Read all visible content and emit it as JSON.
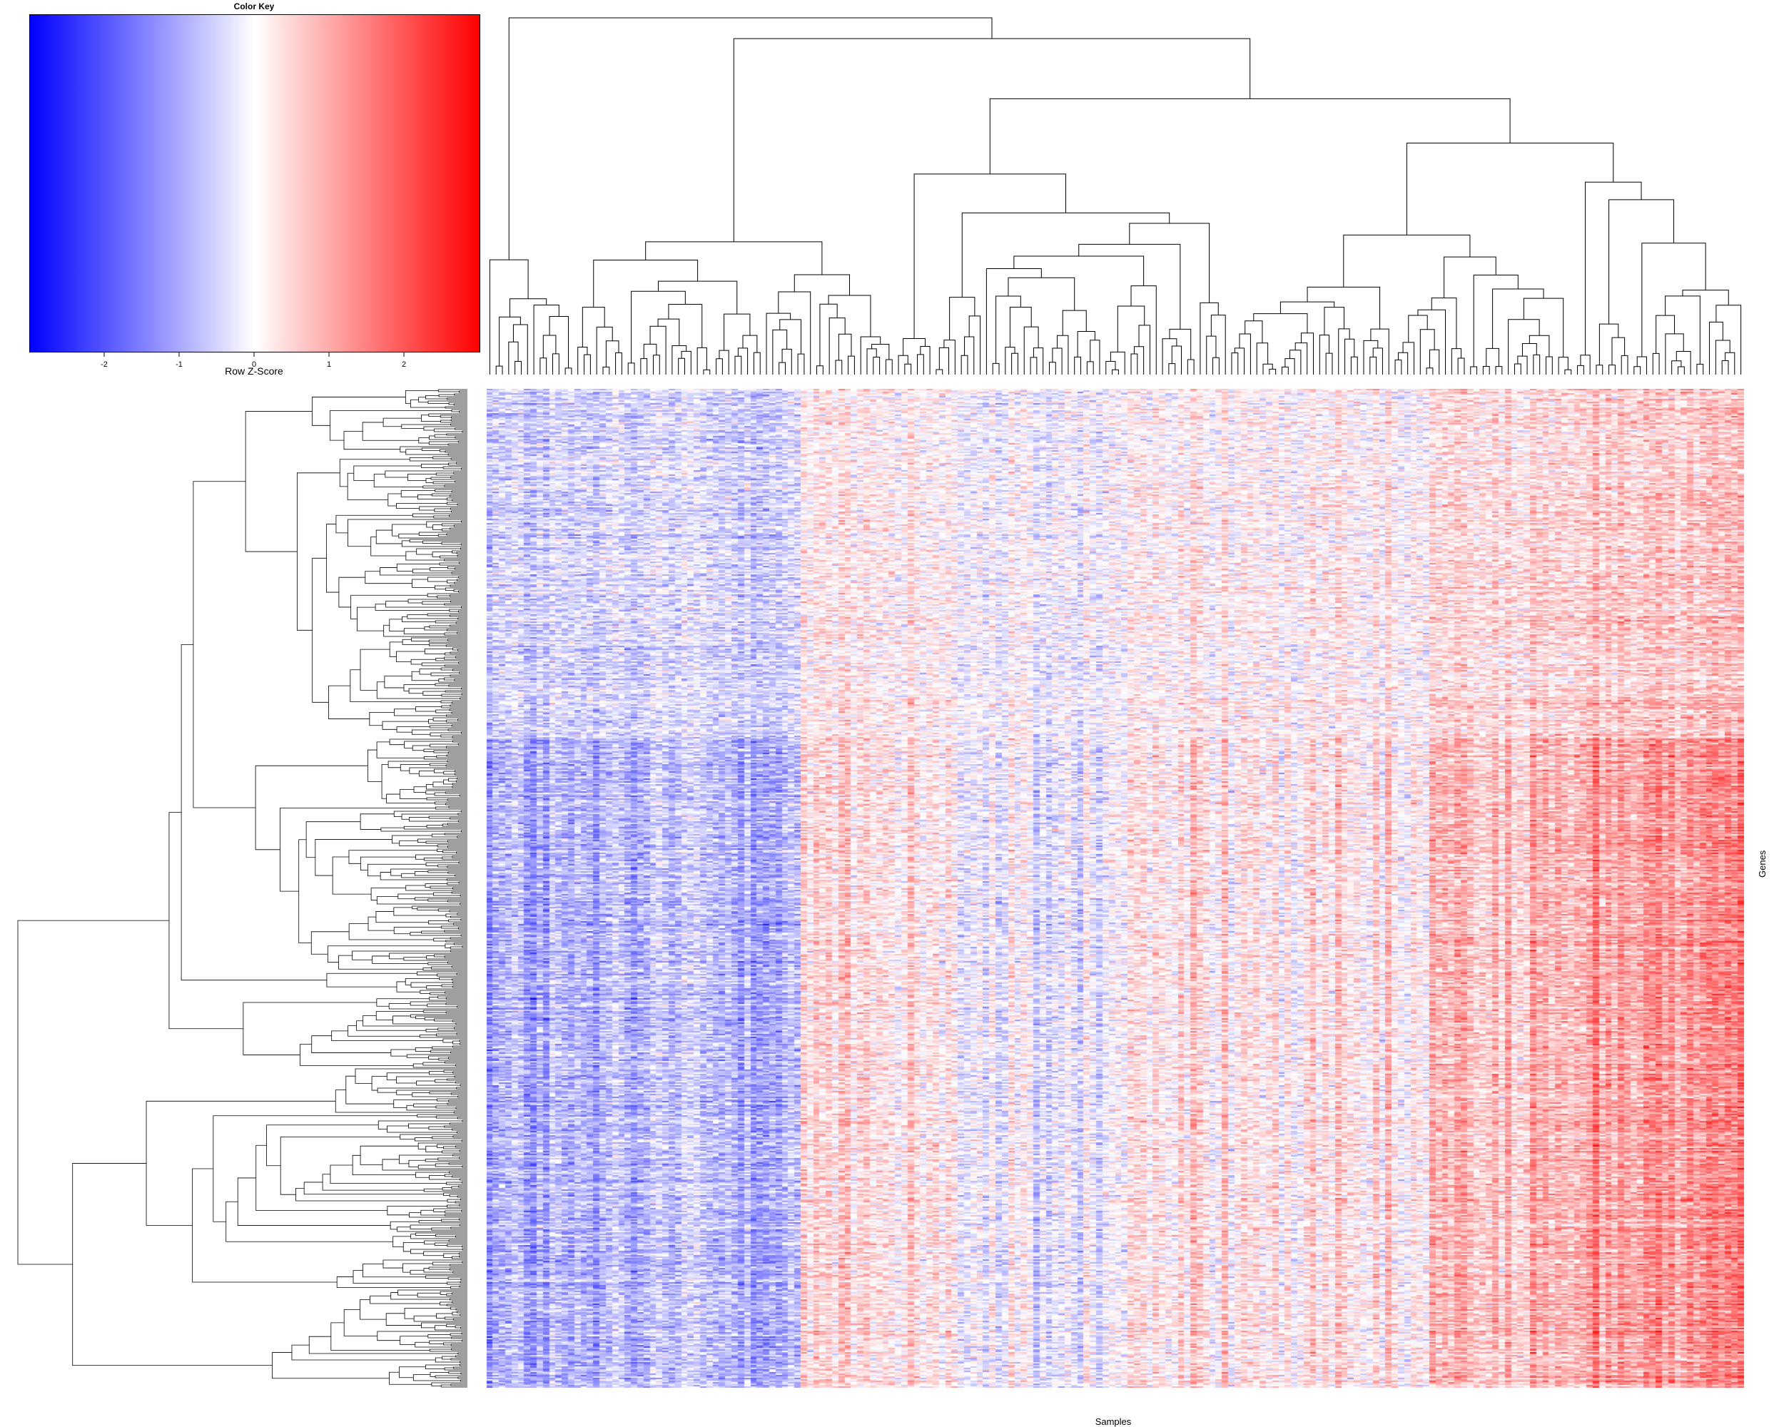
{
  "chart_data": {
    "type": "heatmap",
    "title": "",
    "xlabel": "Samples",
    "ylabel": "Genes",
    "color_key": {
      "title": "Color Key",
      "label": "Row Z-Score",
      "ticks": [
        -2,
        -1,
        0,
        1,
        2
      ],
      "tick_labels": [
        "-2",
        "-1",
        "0",
        "1",
        "2"
      ],
      "range": [
        -3,
        3
      ],
      "colors": {
        "low": "#0000ff",
        "mid": "#ffffff",
        "high": "#ff0000"
      }
    },
    "n_samples": 200,
    "n_genes": 700,
    "column_dendrogram": true,
    "row_dendrogram": true,
    "sample_block_trend": [
      {
        "block": 1,
        "mean_z": -0.8
      },
      {
        "block": 2,
        "mean_z": -0.6
      },
      {
        "block": 3,
        "mean_z": 0.3
      },
      {
        "block": 4,
        "mean_z": -0.2
      },
      {
        "block": 5,
        "mean_z": 0.2
      },
      {
        "block": 6,
        "mean_z": 0.1
      },
      {
        "block": 7,
        "mean_z": 0.6
      },
      {
        "block": 8,
        "mean_z": 1.0
      }
    ]
  }
}
